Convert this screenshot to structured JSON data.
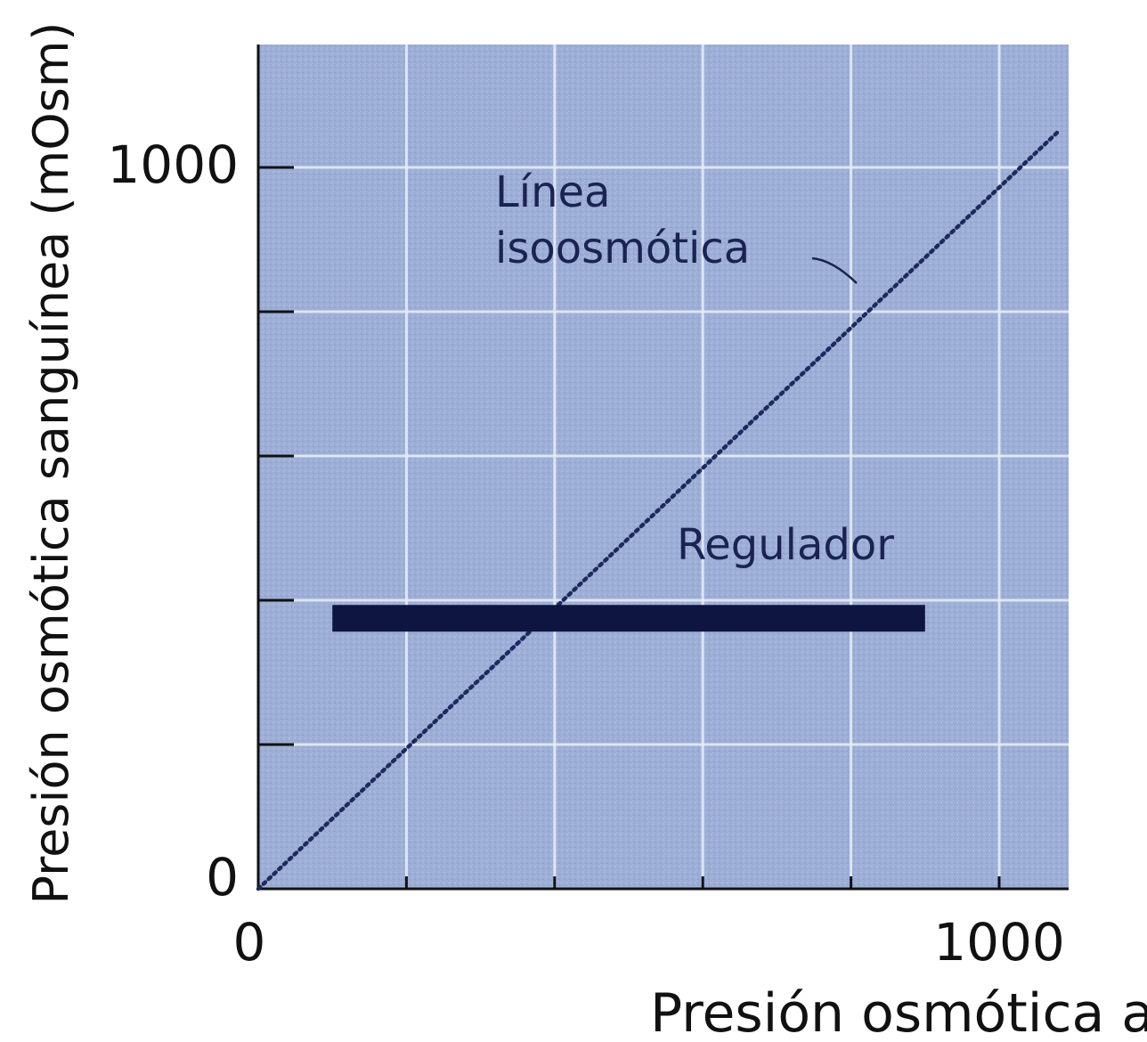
{
  "chart_data": {
    "type": "line",
    "xlabel": "Presión osmótica a",
    "ylabel": "Presión osmótica sanguínea (mOsm)",
    "x_tick_labels": [
      {
        "value": 0,
        "label": "0"
      },
      {
        "value": 1000,
        "label": "1000"
      }
    ],
    "y_tick_labels": [
      {
        "value": 0,
        "label": "0"
      },
      {
        "value": 1000,
        "label": "1000"
      }
    ],
    "xlim": [
      0,
      1100
    ],
    "ylim": [
      0,
      1150
    ],
    "grid_step": 200,
    "grid": true,
    "series": [
      {
        "label": "Línea isoosmótica",
        "style": "dotted",
        "color": "#1c2a5e",
        "x": [
          0,
          1080
        ],
        "y": [
          0,
          1050
        ]
      },
      {
        "label": "Regulador",
        "style": "thick",
        "color": "#0d1540",
        "x": [
          100,
          900
        ],
        "y": [
          375,
          375
        ]
      }
    ],
    "annotations": [
      {
        "lines": [
          "Línea",
          "isoosmótica"
        ]
      },
      {
        "lines": [
          "Regulador"
        ]
      }
    ],
    "colors": {
      "plot_background": "#9daed6",
      "grid": "#e6ebf6",
      "line": "#1c2a5e",
      "regulator": "#0d1540",
      "axis": "#111111",
      "text": "#111111"
    }
  }
}
